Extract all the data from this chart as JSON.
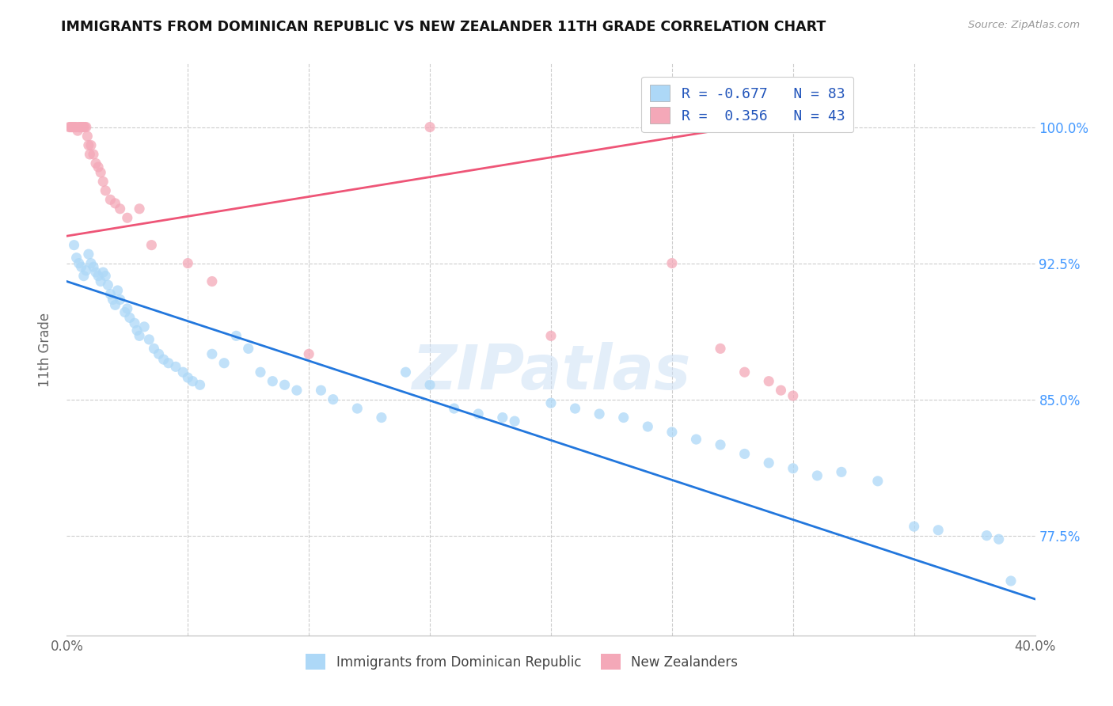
{
  "title": "IMMIGRANTS FROM DOMINICAN REPUBLIC VS NEW ZEALANDER 11TH GRADE CORRELATION CHART",
  "source": "Source: ZipAtlas.com",
  "ylabel": "11th Grade",
  "yticks": [
    100.0,
    92.5,
    85.0,
    77.5
  ],
  "ytick_labels": [
    "100.0%",
    "92.5%",
    "85.0%",
    "77.5%"
  ],
  "xmin": 0.0,
  "xmax": 40.0,
  "ymin": 72.0,
  "ymax": 103.5,
  "legend_bottom": [
    "Immigrants from Dominican Republic",
    "New Zealanders"
  ],
  "blue_scatter_x": [
    0.3,
    0.4,
    0.5,
    0.6,
    0.7,
    0.8,
    0.9,
    1.0,
    1.1,
    1.2,
    1.3,
    1.4,
    1.5,
    1.6,
    1.7,
    1.8,
    1.9,
    2.0,
    2.1,
    2.2,
    2.4,
    2.5,
    2.6,
    2.8,
    2.9,
    3.0,
    3.2,
    3.4,
    3.6,
    3.8,
    4.0,
    4.2,
    4.5,
    4.8,
    5.0,
    5.2,
    5.5,
    6.0,
    6.5,
    7.0,
    7.5,
    8.0,
    8.5,
    9.0,
    9.5,
    10.5,
    11.0,
    12.0,
    13.0,
    14.0,
    15.0,
    16.0,
    17.0,
    18.0,
    18.5,
    20.0,
    21.0,
    22.0,
    23.0,
    24.0,
    25.0,
    26.0,
    27.0,
    28.0,
    29.0,
    30.0,
    31.0,
    32.0,
    33.5,
    35.0,
    36.0,
    38.0,
    38.5,
    39.0
  ],
  "blue_scatter_y": [
    93.5,
    92.8,
    92.5,
    92.3,
    91.8,
    92.1,
    93.0,
    92.5,
    92.3,
    92.0,
    91.8,
    91.5,
    92.0,
    91.8,
    91.3,
    90.8,
    90.5,
    90.2,
    91.0,
    90.5,
    89.8,
    90.0,
    89.5,
    89.2,
    88.8,
    88.5,
    89.0,
    88.3,
    87.8,
    87.5,
    87.2,
    87.0,
    86.8,
    86.5,
    86.2,
    86.0,
    85.8,
    87.5,
    87.0,
    88.5,
    87.8,
    86.5,
    86.0,
    85.8,
    85.5,
    85.5,
    85.0,
    84.5,
    84.0,
    86.5,
    85.8,
    84.5,
    84.2,
    84.0,
    83.8,
    84.8,
    84.5,
    84.2,
    84.0,
    83.5,
    83.2,
    82.8,
    82.5,
    82.0,
    81.5,
    81.2,
    80.8,
    81.0,
    80.5,
    78.0,
    77.8,
    77.5,
    77.3,
    75.0
  ],
  "pink_scatter_x": [
    0.1,
    0.15,
    0.2,
    0.25,
    0.3,
    0.35,
    0.4,
    0.45,
    0.5,
    0.55,
    0.6,
    0.65,
    0.7,
    0.75,
    0.8,
    0.85,
    0.9,
    0.95,
    1.0,
    1.1,
    1.2,
    1.3,
    1.4,
    1.5,
    1.6,
    1.8,
    2.0,
    2.2,
    2.5,
    3.0,
    3.5,
    5.0,
    6.0,
    10.0,
    15.0,
    20.0,
    25.0,
    27.0,
    28.0,
    29.0,
    29.5,
    30.0
  ],
  "pink_scatter_y": [
    100.0,
    100.0,
    100.0,
    100.0,
    100.0,
    100.0,
    100.0,
    99.8,
    100.0,
    100.0,
    100.0,
    100.0,
    100.0,
    100.0,
    100.0,
    99.5,
    99.0,
    98.5,
    99.0,
    98.5,
    98.0,
    97.8,
    97.5,
    97.0,
    96.5,
    96.0,
    95.8,
    95.5,
    95.0,
    95.5,
    93.5,
    92.5,
    91.5,
    87.5,
    100.0,
    88.5,
    92.5,
    87.8,
    86.5,
    86.0,
    85.5,
    85.2
  ],
  "blue_line_x": [
    0.0,
    40.0
  ],
  "blue_line_y": [
    91.5,
    74.0
  ],
  "pink_line_x": [
    0.0,
    30.0
  ],
  "pink_line_y": [
    94.0,
    100.5
  ],
  "scatter_size": 90,
  "blue_color": "#add8f7",
  "pink_color": "#f4a8b8",
  "blue_line_color": "#2277dd",
  "pink_line_color": "#ee5577",
  "watermark": "ZIPatlas",
  "grid_color": "#cccccc",
  "background_color": "#ffffff"
}
